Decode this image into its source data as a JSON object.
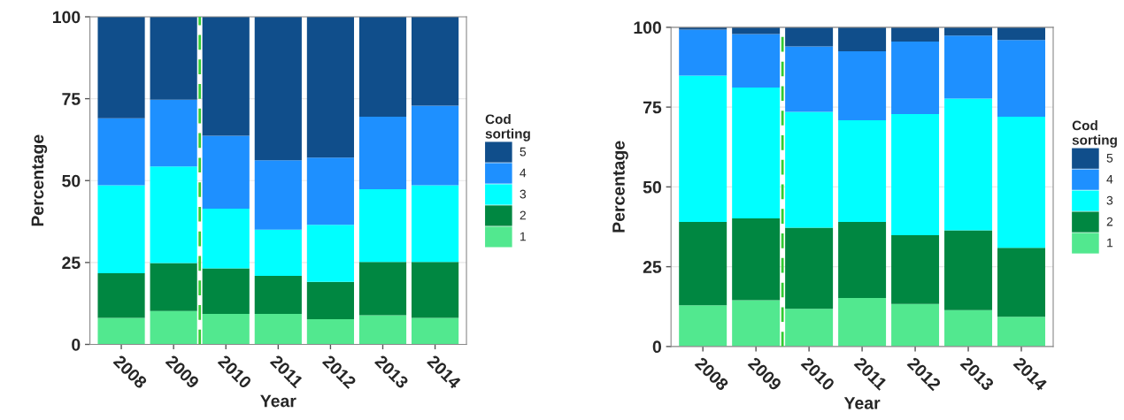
{
  "chart_data": [
    {
      "type": "bar",
      "stacked": true,
      "x": [
        2008,
        2009,
        2010,
        2011,
        2012,
        2013,
        2014
      ],
      "xlim": [
        2007.4,
        2014.6
      ],
      "xticks": [
        2008,
        2009,
        2010,
        2011,
        2012,
        2013,
        2014
      ],
      "xlabel": "Year",
      "ylabel": "Percentage",
      "ylim": [
        0,
        100
      ],
      "yticks": [
        0,
        25,
        50,
        75,
        100
      ],
      "grid": "y",
      "legend": "right",
      "legend_title": "Cod sorting",
      "series": [
        {
          "name": "1",
          "color": "#52e88f",
          "values": [
            8.1,
            10.2,
            9.3,
            9.3,
            7.7,
            8.9,
            8.1
          ]
        },
        {
          "name": "2",
          "color": "#008741",
          "values": [
            13.6,
            14.6,
            13.9,
            11.6,
            11.4,
            16.3,
            17.1
          ]
        },
        {
          "name": "3",
          "color": "#00ffff",
          "values": [
            26.9,
            29.5,
            18.2,
            14.1,
            17.4,
            22.2,
            23.4
          ]
        },
        {
          "name": "4",
          "color": "#1e90ff",
          "values": [
            20.4,
            20.4,
            22.3,
            21.2,
            20.5,
            22.1,
            24.3
          ]
        },
        {
          "name": "5",
          "color": "#104e8b",
          "values": [
            31.0,
            25.3,
            36.3,
            43.8,
            43.0,
            30.5,
            27.1
          ]
        }
      ],
      "ref_lines": [
        {
          "axis": "x",
          "value": 2009.5,
          "color": "#33cc33",
          "line_style": "dashed"
        }
      ]
    },
    {
      "type": "bar",
      "stacked": true,
      "x": [
        2008,
        2009,
        2010,
        2011,
        2012,
        2013,
        2014
      ],
      "xlim": [
        2007.4,
        2014.6
      ],
      "xticks": [
        2008,
        2009,
        2010,
        2011,
        2012,
        2013,
        2014
      ],
      "xlabel": "Year",
      "ylabel": "Percentage",
      "ylim": [
        0,
        100
      ],
      "yticks": [
        0,
        25,
        50,
        75,
        100
      ],
      "grid": "y",
      "legend": "right",
      "legend_title": "Cod sorting",
      "series": [
        {
          "name": "1",
          "color": "#52e88f",
          "values": [
            12.9,
            14.5,
            11.8,
            15.2,
            13.3,
            11.4,
            9.3
          ]
        },
        {
          "name": "2",
          "color": "#008741",
          "values": [
            26.1,
            25.6,
            25.4,
            23.8,
            21.6,
            25.0,
            21.6
          ]
        },
        {
          "name": "3",
          "color": "#00ffff",
          "values": [
            45.9,
            41.0,
            36.3,
            31.9,
            37.9,
            41.3,
            41.1
          ]
        },
        {
          "name": "4",
          "color": "#1e90ff",
          "values": [
            14.4,
            16.8,
            20.5,
            21.6,
            22.7,
            19.7,
            24.0
          ]
        },
        {
          "name": "5",
          "color": "#104e8b",
          "values": [
            0.7,
            2.1,
            6.0,
            7.5,
            4.5,
            2.6,
            4.0
          ]
        }
      ],
      "ref_lines": [
        {
          "axis": "x",
          "value": 2009.5,
          "color": "#33cc33",
          "line_style": "dashed"
        }
      ]
    }
  ]
}
